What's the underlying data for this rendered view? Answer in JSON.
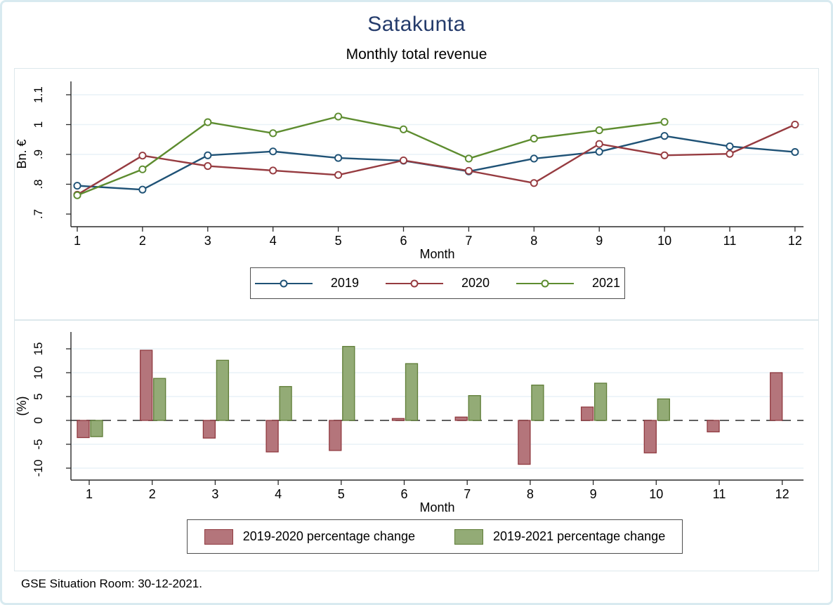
{
  "page": {
    "title": "Satakunta",
    "subtitle": "Monthly total revenue",
    "footer": "GSE Situation Room: 30-12-2021.",
    "colors": {
      "title_text": "#243b6b",
      "frame": "#d8eaf0",
      "panel_border": "#dde8ec",
      "gridline": "#e9f2f7",
      "axis": "#2b2b2b",
      "zero_dash": "#4a4a4a"
    }
  },
  "chart_data": [
    {
      "type": "line",
      "title": "Monthly total revenue",
      "xlabel": "Month",
      "ylabel": "Bn. €",
      "x": [
        1,
        2,
        3,
        4,
        5,
        6,
        7,
        8,
        9,
        10,
        11,
        12
      ],
      "xticklabels": [
        "1",
        "2",
        "3",
        "4",
        "5",
        "6",
        "7",
        "8",
        "9",
        "10",
        "11",
        "12"
      ],
      "yticks": [
        0.7,
        0.8,
        0.9,
        1.0,
        1.1
      ],
      "yticklabels": [
        ".7",
        ".8",
        ".9",
        "1",
        "1.1"
      ],
      "ylim": [
        0.655,
        1.145
      ],
      "grid": true,
      "legend_position": "bottom-box",
      "series": [
        {
          "name": "2019",
          "color": "#1f5276",
          "values": [
            0.795,
            0.782,
            0.897,
            0.91,
            0.888,
            0.879,
            0.843,
            0.886,
            0.909,
            0.962,
            0.927,
            0.908
          ]
        },
        {
          "name": "2020",
          "color": "#963b40",
          "values": [
            0.765,
            0.896,
            0.861,
            0.846,
            0.831,
            0.88,
            0.845,
            0.804,
            0.935,
            0.897,
            0.902,
            1.0
          ]
        },
        {
          "name": "2021",
          "color": "#5d8c2f",
          "values": [
            0.763,
            0.85,
            1.008,
            0.971,
            1.027,
            0.984,
            0.886,
            0.953,
            0.981,
            1.009,
            null,
            null
          ]
        }
      ]
    },
    {
      "type": "bar",
      "xlabel": "Month",
      "ylabel": "(%)",
      "categories": [
        "1",
        "2",
        "3",
        "4",
        "5",
        "6",
        "7",
        "8",
        "9",
        "10",
        "11",
        "12"
      ],
      "yticks": [
        15,
        10,
        5,
        0,
        -5,
        -10
      ],
      "yticklabels": [
        "15",
        "10",
        "5",
        "0",
        "-5",
        "-10"
      ],
      "ylim": [
        -13,
        17.5
      ],
      "zero_line": "dashed",
      "grid": true,
      "legend_position": "bottom-box",
      "series": [
        {
          "name": "2019-2020 percentage change",
          "fill": "#b4757b",
          "stroke": "#903a40",
          "values": [
            -3.6,
            14.7,
            -3.7,
            -6.6,
            -6.3,
            0.4,
            0.7,
            -9.2,
            2.8,
            -6.8,
            -2.4,
            10.0
          ]
        },
        {
          "name": "2019-2021 percentage change",
          "fill": "#93ab76",
          "stroke": "#5f7d37",
          "values": [
            -3.4,
            8.8,
            12.6,
            7.1,
            15.5,
            11.9,
            5.2,
            7.4,
            7.8,
            4.5,
            null,
            null
          ]
        }
      ]
    }
  ]
}
